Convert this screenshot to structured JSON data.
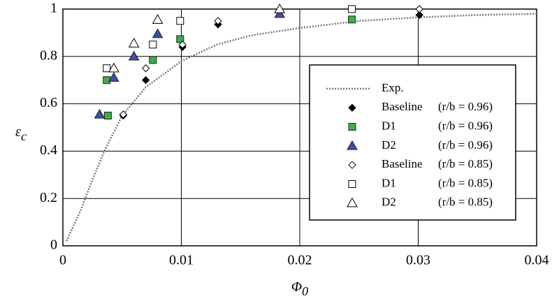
{
  "chart_data": {
    "type": "scatter",
    "xlabel": {
      "text": "Φ",
      "sub": "0"
    },
    "ylabel": {
      "text": "ε",
      "sub": "c"
    },
    "xlim": [
      0,
      0.04
    ],
    "xticks": [
      0,
      0.01,
      0.02,
      0.03,
      0.04
    ],
    "ylim": [
      0,
      1
    ],
    "yticks": [
      0,
      0.2,
      0.4,
      0.6,
      0.8,
      1
    ],
    "grid": true,
    "legend": "right",
    "series": [
      {
        "name": "Exp.",
        "mode": "dotted-line",
        "color": "#777777",
        "x": [
          0.0003,
          0.0015,
          0.0025,
          0.0035,
          0.005,
          0.007,
          0.01,
          0.013,
          0.016,
          0.02,
          0.025,
          0.03,
          0.035,
          0.04
        ],
        "values": [
          0.02,
          0.15,
          0.28,
          0.4,
          0.55,
          0.67,
          0.78,
          0.85,
          0.89,
          0.92,
          0.95,
          0.965,
          0.975,
          0.98
        ]
      },
      {
        "name": "Baseline",
        "condition": "(r/b = 0.96)",
        "mode": "marker",
        "marker": "diamond",
        "color": "#000000",
        "filled": true,
        "x": [
          0.0051,
          0.007,
          0.0101,
          0.0131,
          0.0301
        ],
        "values": [
          0.55,
          0.7,
          0.84,
          0.935,
          0.975
        ]
      },
      {
        "name": "D1",
        "condition": "(r/b = 0.96)",
        "mode": "marker",
        "marker": "square",
        "color": "#3fae49",
        "filled": true,
        "x": [
          0.0038,
          0.0037,
          0.0076,
          0.0099,
          0.0244
        ],
        "values": [
          0.55,
          0.7,
          0.785,
          0.873,
          0.956
        ]
      },
      {
        "name": "D2",
        "condition": "(r/b = 0.96)",
        "mode": "marker",
        "marker": "triangle",
        "color": "#3d50a3",
        "filled": true,
        "x": [
          0.0031,
          0.0043,
          0.006,
          0.008,
          0.0183
        ],
        "values": [
          0.555,
          0.71,
          0.8,
          0.895,
          0.98
        ]
      },
      {
        "name": "Baseline",
        "condition": "(r/b = 0.85)",
        "mode": "marker",
        "marker": "diamond",
        "color": "#000000",
        "filled": false,
        "x": [
          0.0051,
          0.007,
          0.0101,
          0.0131,
          0.0301
        ],
        "values": [
          0.555,
          0.75,
          0.85,
          0.95,
          1.0
        ]
      },
      {
        "name": "D1",
        "condition": "(r/b = 0.85)",
        "mode": "marker",
        "marker": "square",
        "color": "#000000",
        "filled": false,
        "x": [
          0.0037,
          0.0076,
          0.0099,
          0.0244
        ],
        "values": [
          0.75,
          0.85,
          0.95,
          1.0
        ]
      },
      {
        "name": "D2",
        "condition": "(r/b = 0.85)",
        "mode": "marker",
        "marker": "triangle",
        "color": "#000000",
        "filled": false,
        "x": [
          0.0043,
          0.006,
          0.008,
          0.0183
        ],
        "values": [
          0.75,
          0.855,
          0.955,
          1.0
        ]
      }
    ]
  }
}
